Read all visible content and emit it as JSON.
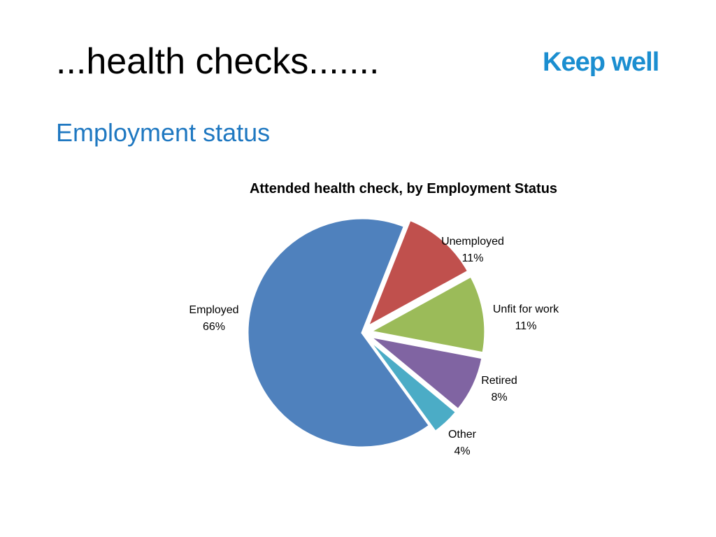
{
  "slide": {
    "title": "...health checks.......",
    "subtitle": "Employment status",
    "logo_text": "Keep well"
  },
  "colors": {
    "title": "#000000",
    "subtitle": "#1f78c1",
    "logo": "#1b8ed0"
  },
  "chart_data": {
    "type": "pie",
    "title": "Attended health check, by Employment Status",
    "slices": [
      {
        "name": "Employed",
        "value": 66,
        "label": "66%",
        "color": "#4f81bd",
        "exploded": false
      },
      {
        "name": "Unemployed",
        "value": 11,
        "label": "11%",
        "color": "#c0504d",
        "exploded": true
      },
      {
        "name": "Unfit for work",
        "value": 11,
        "label": "11%",
        "color": "#9bbb59",
        "exploded": true
      },
      {
        "name": "Retired",
        "value": 8,
        "label": "8%",
        "color": "#8064a2",
        "exploded": true
      },
      {
        "name": "Other",
        "value": 4,
        "label": "4%",
        "color": "#4bacc6",
        "exploded": true
      }
    ],
    "legend": "none"
  }
}
